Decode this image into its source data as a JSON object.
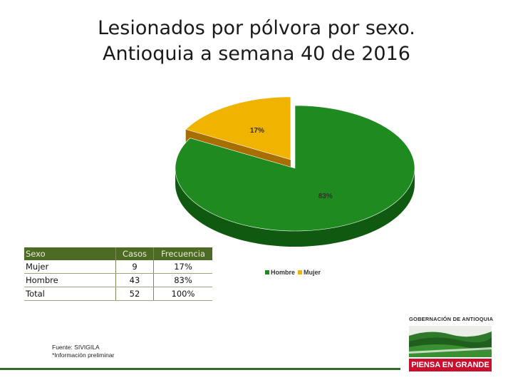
{
  "title": {
    "line1": "Lesionados por pólvora por sexo.",
    "line2": "Antioquia a semana 40 de 2016"
  },
  "chart_data": {
    "type": "pie",
    "categories": [
      "Hombre",
      "Mujer"
    ],
    "values": [
      83,
      17
    ],
    "labels": [
      "83%",
      "17%"
    ],
    "colors": [
      "#1f8a1f",
      "#f0b400"
    ],
    "legend_placement": "bottom",
    "exploded": "Mujer",
    "style": "3d"
  },
  "table": {
    "headers": [
      "Sexo",
      "Casos",
      "Frecuencia"
    ],
    "rows": [
      [
        "Mujer",
        "9",
        "17%"
      ],
      [
        "Hombre",
        "43",
        "83%"
      ],
      [
        "Total",
        "52",
        "100%"
      ]
    ]
  },
  "source": {
    "line1": "Fuente: SIVIGILA",
    "line2": "*Información preliminar"
  },
  "logo": {
    "org": "GOBERNACIÓN DE ANTIOQUIA",
    "slogan": "PIENSA EN GRANDE"
  }
}
